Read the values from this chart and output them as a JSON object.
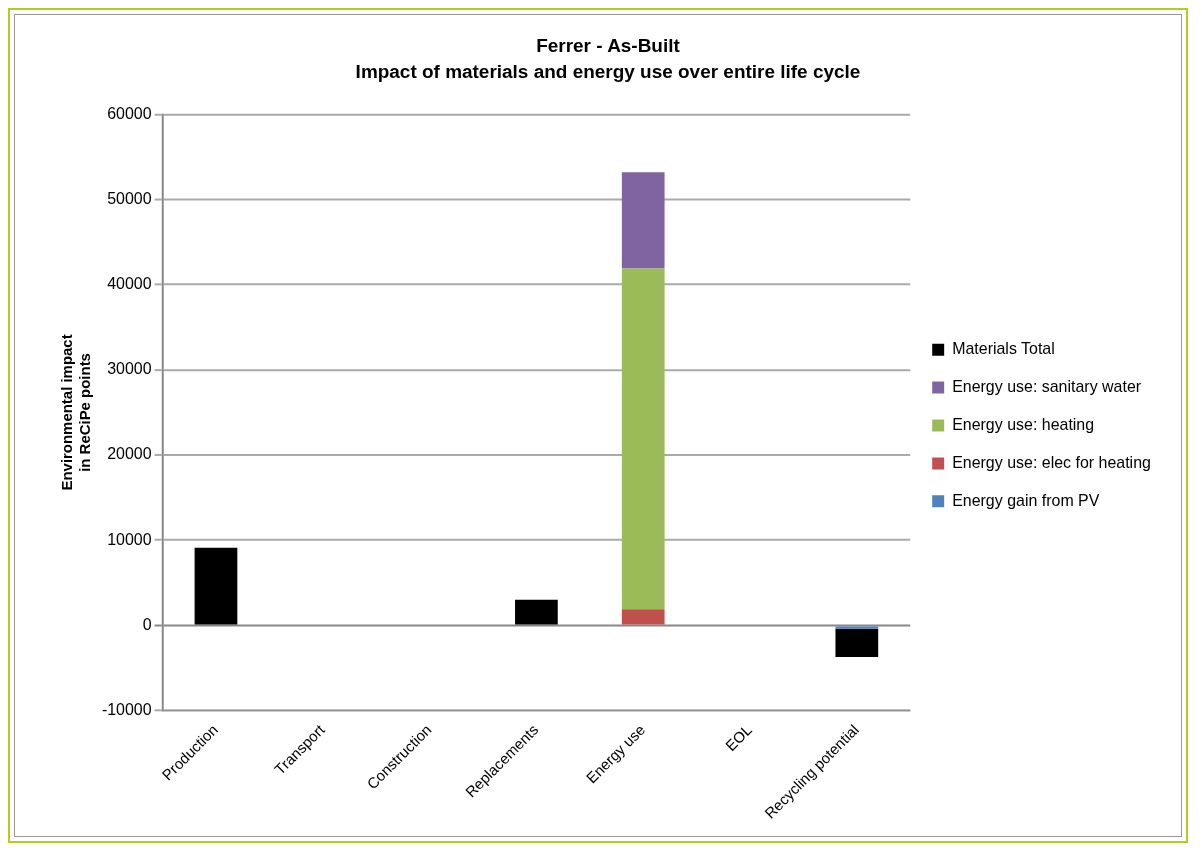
{
  "chart_data": {
    "type": "bar",
    "title": "Ferrer - As-Built",
    "subtitle": "Impact of materials and energy use over entire life cycle",
    "ylabel": "Environmental impact\nin ReCiPe points",
    "categories": [
      "Production",
      "Transport",
      "Construction",
      "Replacements",
      "Energy use",
      "EOL",
      "Recycling potential"
    ],
    "stacked": true,
    "legend": "right",
    "grid": "y",
    "ylim": [
      -10000,
      60000
    ],
    "yticks": [
      -10000,
      0,
      10000,
      20000,
      30000,
      40000,
      50000,
      60000
    ],
    "series": [
      {
        "name": "Energy gain from PV",
        "color": "#4f81bd",
        "values": [
          null,
          null,
          null,
          null,
          null,
          null,
          -400
        ]
      },
      {
        "name": "Energy use: elec for heating",
        "color": "#c0504d",
        "values": [
          null,
          null,
          null,
          null,
          1900,
          null,
          null
        ]
      },
      {
        "name": "Energy use: heating",
        "color": "#9bbb59",
        "values": [
          null,
          null,
          null,
          null,
          40000,
          null,
          null
        ]
      },
      {
        "name": "Energy use: sanitary water",
        "color": "#8064a2",
        "values": [
          null,
          null,
          null,
          null,
          11300,
          null,
          null
        ]
      },
      {
        "name": "Materials Total",
        "color": "#000000",
        "values": [
          9100,
          null,
          null,
          3000,
          null,
          null,
          -3300
        ]
      }
    ]
  }
}
